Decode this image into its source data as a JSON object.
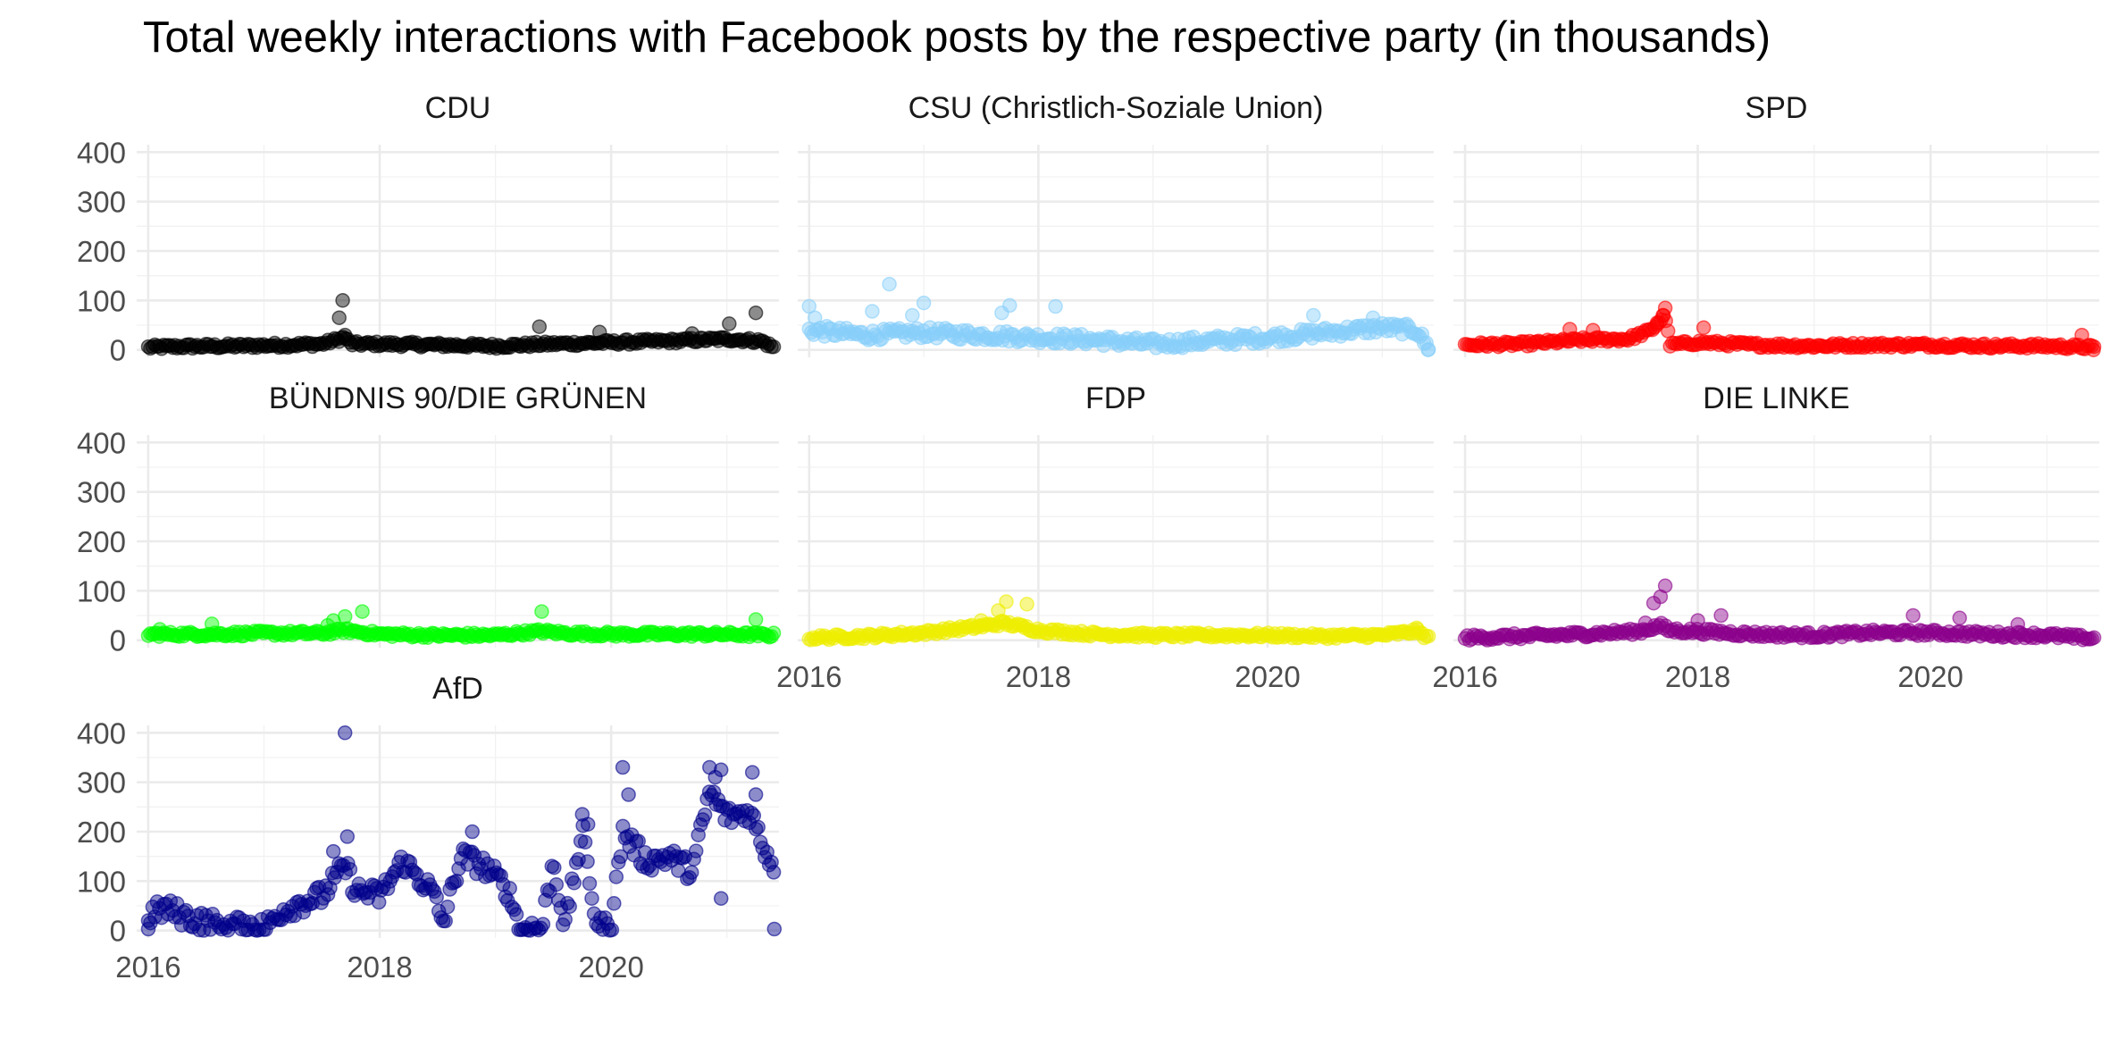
{
  "chart_data": {
    "type": "scatter",
    "title": "Total weekly interactions with Facebook posts by the respective party (in thousands)",
    "xlabel": "",
    "ylabel": "",
    "x_ticks": [
      "2016",
      "2018",
      "2020"
    ],
    "x_range": [
      2015.9,
      2021.45
    ],
    "y_ticks": [
      "0",
      "100",
      "200",
      "300",
      "400"
    ],
    "ylim": [
      -15,
      415
    ],
    "grid": true,
    "legend": "none",
    "x_unit": "year",
    "y_unit": "thousand interactions per week",
    "panels": [
      {
        "name": "CDU",
        "color": "#000000",
        "anchors": [
          [
            2016.0,
            5
          ],
          [
            2016.3,
            7
          ],
          [
            2016.8,
            8
          ],
          [
            2017.2,
            10
          ],
          [
            2017.5,
            12
          ],
          [
            2017.7,
            25
          ],
          [
            2017.75,
            12
          ],
          [
            2018.0,
            12
          ],
          [
            2018.5,
            10
          ],
          [
            2019.0,
            8
          ],
          [
            2019.5,
            12
          ],
          [
            2020.0,
            15
          ],
          [
            2020.5,
            18
          ],
          [
            2021.0,
            22
          ],
          [
            2021.3,
            18
          ],
          [
            2021.4,
            5
          ]
        ],
        "noise": 5,
        "highlights": [
          [
            2017.68,
            100
          ],
          [
            2017.65,
            65
          ],
          [
            2017.7,
            30
          ],
          [
            2019.38,
            47
          ],
          [
            2019.9,
            36
          ],
          [
            2020.7,
            33
          ],
          [
            2021.02,
            53
          ],
          [
            2021.25,
            75
          ]
        ]
      },
      {
        "name": "CSU (Christlich-Soziale Union)",
        "color": "#87cefa",
        "anchors": [
          [
            2016.0,
            40
          ],
          [
            2016.5,
            30
          ],
          [
            2017.0,
            35
          ],
          [
            2017.5,
            30
          ],
          [
            2018.0,
            25
          ],
          [
            2018.5,
            20
          ],
          [
            2019.0,
            12
          ],
          [
            2019.5,
            18
          ],
          [
            2020.0,
            25
          ],
          [
            2020.5,
            35
          ],
          [
            2021.0,
            45
          ],
          [
            2021.3,
            40
          ],
          [
            2021.4,
            5
          ]
        ],
        "noise": 11,
        "highlights": [
          [
            2016.0,
            88
          ],
          [
            2016.05,
            65
          ],
          [
            2016.7,
            133
          ],
          [
            2016.55,
            78
          ],
          [
            2017.0,
            95
          ],
          [
            2017.75,
            90
          ],
          [
            2017.68,
            75
          ],
          [
            2018.15,
            88
          ],
          [
            2020.4,
            70
          ],
          [
            2020.92,
            65
          ],
          [
            2016.9,
            70
          ],
          [
            2021.4,
            0
          ]
        ]
      },
      {
        "name": "SPD",
        "color": "#ff0000",
        "anchors": [
          [
            2016.0,
            10
          ],
          [
            2016.5,
            12
          ],
          [
            2017.0,
            20
          ],
          [
            2017.4,
            22
          ],
          [
            2017.6,
            40
          ],
          [
            2017.72,
            70
          ],
          [
            2017.76,
            10
          ],
          [
            2018.0,
            15
          ],
          [
            2018.5,
            10
          ],
          [
            2019.0,
            8
          ],
          [
            2019.5,
            10
          ],
          [
            2020.0,
            10
          ],
          [
            2020.5,
            8
          ],
          [
            2021.0,
            8
          ],
          [
            2021.4,
            5
          ]
        ],
        "noise": 5,
        "highlights": [
          [
            2017.72,
            85
          ],
          [
            2017.7,
            70
          ],
          [
            2017.65,
            55
          ],
          [
            2018.05,
            45
          ],
          [
            2021.3,
            30
          ],
          [
            2016.9,
            42
          ],
          [
            2017.1,
            40
          ],
          [
            2021.4,
            0
          ]
        ]
      },
      {
        "name": "BÜNDNIS 90/DIE GRÜNEN",
        "color": "#00ff00",
        "anchors": [
          [
            2016.0,
            12
          ],
          [
            2016.5,
            12
          ],
          [
            2017.0,
            14
          ],
          [
            2017.5,
            14
          ],
          [
            2017.7,
            20
          ],
          [
            2018.0,
            12
          ],
          [
            2018.5,
            10
          ],
          [
            2019.0,
            10
          ],
          [
            2019.4,
            18
          ],
          [
            2019.6,
            14
          ],
          [
            2020.0,
            12
          ],
          [
            2020.5,
            12
          ],
          [
            2021.0,
            12
          ],
          [
            2021.4,
            10
          ]
        ],
        "noise": 5,
        "highlights": [
          [
            2016.55,
            33
          ],
          [
            2017.6,
            40
          ],
          [
            2017.7,
            48
          ],
          [
            2017.85,
            58
          ],
          [
            2019.4,
            58
          ],
          [
            2021.25,
            42
          ],
          [
            2016.1,
            22
          ],
          [
            2017.55,
            30
          ]
        ]
      },
      {
        "name": "FDP",
        "color": "#eeee00",
        "anchors": [
          [
            2016.0,
            5
          ],
          [
            2016.5,
            8
          ],
          [
            2017.0,
            15
          ],
          [
            2017.5,
            28
          ],
          [
            2017.7,
            35
          ],
          [
            2018.0,
            20
          ],
          [
            2018.5,
            12
          ],
          [
            2019.0,
            10
          ],
          [
            2019.5,
            10
          ],
          [
            2020.0,
            10
          ],
          [
            2020.5,
            8
          ],
          [
            2021.0,
            10
          ],
          [
            2021.3,
            18
          ],
          [
            2021.4,
            5
          ]
        ],
        "noise": 5,
        "highlights": [
          [
            2017.72,
            78
          ],
          [
            2017.9,
            73
          ],
          [
            2017.65,
            60
          ],
          [
            2017.5,
            40
          ],
          [
            2021.3,
            25
          ]
        ]
      },
      {
        "name": "DIE LINKE",
        "color": "#8b008b",
        "anchors": [
          [
            2016.0,
            5
          ],
          [
            2016.5,
            8
          ],
          [
            2017.0,
            12
          ],
          [
            2017.5,
            18
          ],
          [
            2017.68,
            30
          ],
          [
            2017.75,
            20
          ],
          [
            2018.0,
            18
          ],
          [
            2018.5,
            12
          ],
          [
            2019.0,
            10
          ],
          [
            2019.5,
            15
          ],
          [
            2020.0,
            15
          ],
          [
            2020.5,
            12
          ],
          [
            2021.0,
            10
          ],
          [
            2021.4,
            3
          ]
        ],
        "noise": 6,
        "highlights": [
          [
            2017.72,
            110
          ],
          [
            2017.68,
            88
          ],
          [
            2017.62,
            75
          ],
          [
            2018.2,
            50
          ],
          [
            2018.0,
            40
          ],
          [
            2019.85,
            50
          ],
          [
            2020.25,
            45
          ],
          [
            2020.75,
            32
          ],
          [
            2017.55,
            35
          ]
        ]
      },
      {
        "name": "AfD",
        "color": "#00008b",
        "anchors": [
          [
            2016.0,
            30
          ],
          [
            2016.15,
            45
          ],
          [
            2016.3,
            30
          ],
          [
            2016.5,
            15
          ],
          [
            2016.8,
            10
          ],
          [
            2017.0,
            5
          ],
          [
            2017.15,
            40
          ],
          [
            2017.3,
            55
          ],
          [
            2017.5,
            70
          ],
          [
            2017.7,
            130
          ],
          [
            2017.8,
            80
          ],
          [
            2018.0,
            70
          ],
          [
            2018.2,
            140
          ],
          [
            2018.45,
            80
          ],
          [
            2018.55,
            15
          ],
          [
            2018.7,
            150
          ],
          [
            2018.9,
            130
          ],
          [
            2019.1,
            85
          ],
          [
            2019.22,
            5
          ],
          [
            2019.4,
            5
          ],
          [
            2019.5,
            140
          ],
          [
            2019.6,
            5
          ],
          [
            2019.75,
            200
          ],
          [
            2019.88,
            5
          ],
          [
            2020.0,
            10
          ],
          [
            2020.1,
            200
          ],
          [
            2020.3,
            140
          ],
          [
            2020.5,
            150
          ],
          [
            2020.7,
            120
          ],
          [
            2020.85,
            280
          ],
          [
            2021.0,
            230
          ],
          [
            2021.2,
            240
          ],
          [
            2021.3,
            180
          ],
          [
            2021.4,
            130
          ]
        ],
        "noise": 22,
        "highlights": [
          [
            2017.7,
            400
          ],
          [
            2017.72,
            190
          ],
          [
            2017.6,
            160
          ],
          [
            2018.8,
            200
          ],
          [
            2020.1,
            330
          ],
          [
            2020.15,
            275
          ],
          [
            2020.85,
            330
          ],
          [
            2020.9,
            310
          ],
          [
            2020.95,
            325
          ],
          [
            2021.22,
            320
          ],
          [
            2021.25,
            275
          ],
          [
            2020.95,
            65
          ],
          [
            2021.41,
            3
          ],
          [
            2016.0,
            3
          ],
          [
            2019.75,
            235
          ],
          [
            2019.8,
            215
          ]
        ]
      }
    ]
  }
}
